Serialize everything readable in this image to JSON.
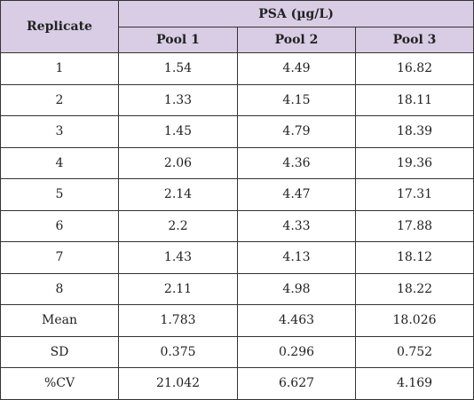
{
  "table": {
    "header": {
      "replicate_label": "Replicate",
      "group_label": "PSA (µg/L)",
      "columns": [
        "Pool 1",
        "Pool 2",
        "Pool 3"
      ]
    },
    "rows": [
      {
        "label": "1",
        "values": [
          "1.54",
          "4.49",
          "16.82"
        ]
      },
      {
        "label": "2",
        "values": [
          "1.33",
          "4.15",
          "18.11"
        ]
      },
      {
        "label": "3",
        "values": [
          "1.45",
          "4.79",
          "18.39"
        ]
      },
      {
        "label": "4",
        "values": [
          "2.06",
          "4.36",
          "19.36"
        ]
      },
      {
        "label": "5",
        "values": [
          "2.14",
          "4.47",
          "17.31"
        ]
      },
      {
        "label": "6",
        "values": [
          "2.2",
          "4.33",
          "17.88"
        ]
      },
      {
        "label": "7",
        "values": [
          "1.43",
          "4.13",
          "18.12"
        ]
      },
      {
        "label": "8",
        "values": [
          "2.11",
          "4.98",
          "18.22"
        ]
      },
      {
        "label": "Mean",
        "values": [
          "1.783",
          "4.463",
          "18.026"
        ]
      },
      {
        "label": "SD",
        "values": [
          "0.375",
          "0.296",
          "0.752"
        ]
      },
      {
        "label": "%CV",
        "values": [
          "21.042",
          "6.627",
          "4.169"
        ]
      }
    ],
    "colors": {
      "header_background": "#d8cde4",
      "border": "#333333",
      "text": "#222222"
    }
  }
}
